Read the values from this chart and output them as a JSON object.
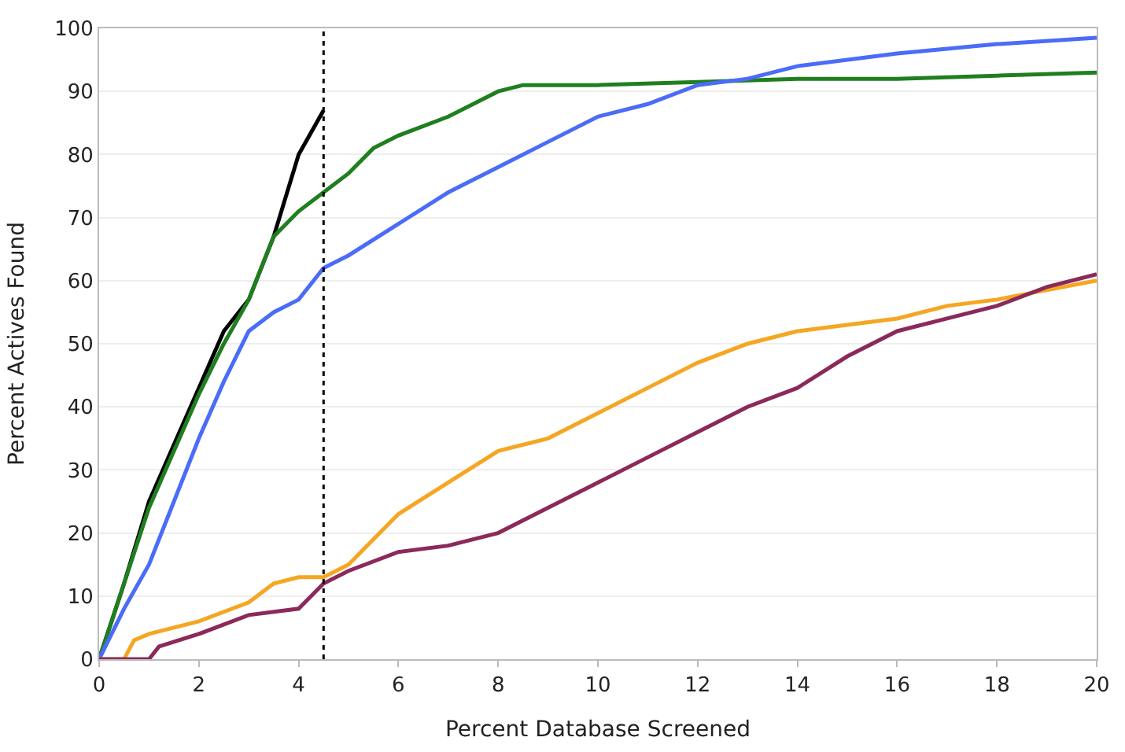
{
  "chart_data": {
    "type": "line",
    "xlabel": "Percent Database Screened",
    "ylabel": "Percent Actives Found",
    "xlim": [
      0,
      20
    ],
    "xticks": [
      0,
      2,
      4,
      6,
      8,
      10,
      12,
      14,
      16,
      18,
      20
    ],
    "ylim": [
      0,
      100
    ],
    "yticks": [
      0,
      10,
      20,
      30,
      40,
      50,
      60,
      70,
      80,
      90,
      100
    ],
    "grid": "y",
    "marker": "none",
    "line_style": "solid",
    "ref_lines": [
      {
        "axis": "x",
        "value": 4.5,
        "line_style": "dotted",
        "color": "#000000"
      }
    ],
    "series": [
      {
        "color": "#000000",
        "x": [
          0,
          0.5,
          1,
          1.5,
          2,
          2.5,
          3,
          3.5,
          4,
          4.5
        ],
        "values": [
          0,
          12,
          25,
          34,
          43,
          52,
          57,
          67,
          80,
          87
        ]
      },
      {
        "color": "#1f7f1f",
        "x": [
          0,
          0.5,
          1,
          1.5,
          2,
          2.5,
          3,
          3.5,
          4,
          4.5,
          5,
          5.5,
          6,
          7,
          7.5,
          8,
          8.5,
          10,
          12,
          14,
          16,
          18,
          20
        ],
        "values": [
          0,
          12,
          24,
          33,
          42,
          50,
          57,
          67,
          71,
          74,
          77,
          81,
          83,
          86,
          88,
          90,
          91,
          91,
          91.5,
          92,
          92,
          92.5,
          93
        ]
      },
      {
        "color": "#4a6cf7",
        "x": [
          0,
          0.5,
          1,
          1.5,
          2,
          2.5,
          3,
          3.5,
          4,
          4.5,
          5,
          6,
          7,
          8,
          9,
          10,
          11,
          12,
          13,
          14,
          16,
          18,
          20
        ],
        "values": [
          0,
          8,
          15,
          25,
          35,
          44,
          52,
          55,
          57,
          62,
          64,
          69,
          74,
          78,
          82,
          86,
          88,
          91,
          92,
          94,
          96,
          97.5,
          98.5
        ]
      },
      {
        "color": "#f5a623",
        "x": [
          0,
          0.5,
          0.7,
          1,
          2,
          3,
          3.5,
          4,
          4.5,
          5,
          6,
          7,
          8,
          9,
          10,
          11,
          12,
          13,
          14,
          15,
          16,
          17,
          18,
          20
        ],
        "values": [
          0,
          0,
          3,
          4,
          6,
          9,
          12,
          13,
          13,
          15,
          23,
          28,
          33,
          35,
          39,
          43,
          47,
          50,
          52,
          53,
          54,
          56,
          57,
          60
        ]
      },
      {
        "color": "#8b2a5a",
        "x": [
          0,
          1,
          1.2,
          2,
          3,
          4,
          4.5,
          5,
          6,
          7,
          8,
          9,
          10,
          11,
          12,
          13,
          14,
          15,
          16,
          17,
          18,
          19,
          20
        ],
        "values": [
          0,
          0,
          2,
          4,
          7,
          8,
          12,
          14,
          17,
          18,
          20,
          24,
          28,
          32,
          36,
          40,
          43,
          48,
          52,
          54,
          56,
          59,
          61
        ]
      }
    ]
  }
}
